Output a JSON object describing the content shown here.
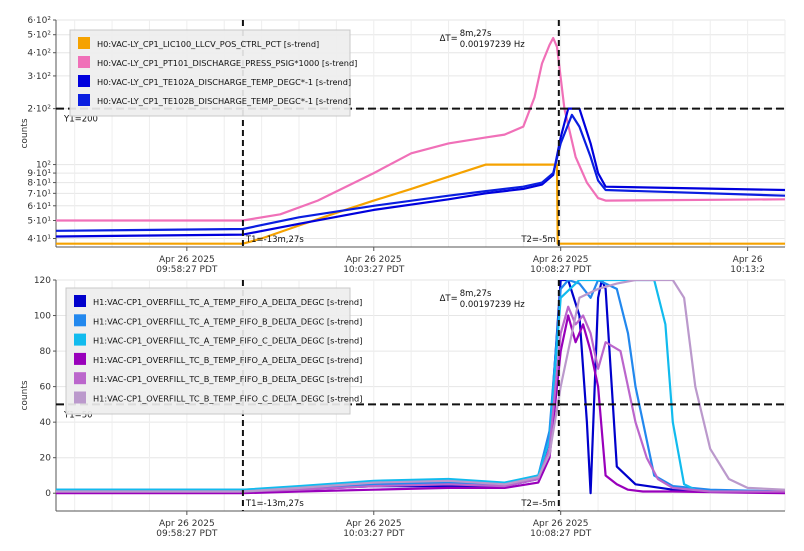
{
  "chart_data": [
    {
      "type": "line",
      "ylabel": "counts",
      "y_scale": "log",
      "ylim": [
        36,
        600
      ],
      "yticks": [
        {
          "v": 40,
          "label": "4·10¹"
        },
        {
          "v": 50,
          "label": "5·10¹"
        },
        {
          "v": 60,
          "label": "6·10¹"
        },
        {
          "v": 70,
          "label": "7·10¹"
        },
        {
          "v": 80,
          "label": "8·10¹"
        },
        {
          "v": 90,
          "label": "9·10¹"
        },
        {
          "v": 100,
          "label": "10²"
        },
        {
          "v": 200,
          "label": "2·10²"
        },
        {
          "v": 300,
          "label": "3·10²"
        },
        {
          "v": 400,
          "label": "4·10²"
        },
        {
          "v": 500,
          "label": "5·10²"
        },
        {
          "v": 600,
          "label": "6·10²"
        }
      ],
      "xlim": [
        -3.5,
        16
      ],
      "xticks": [
        {
          "v": 0,
          "date": "Apr 26 2025",
          "time": "09:58:27 PDT"
        },
        {
          "v": 5,
          "date": "Apr 26 2025",
          "time": "10:03:27 PDT"
        },
        {
          "v": 10,
          "date": "Apr 26 2025",
          "time": "10:08:27 PDT"
        },
        {
          "v": 15,
          "date": "Apr 26",
          "time": "10:13:2"
        }
      ],
      "cursors": {
        "t1_x": 1.5,
        "t1_label": "T1=-13m,27s",
        "t2_x": 9.95,
        "t2_label": "T2=-5m",
        "y1_value": 200,
        "y1_label": "Y1=200",
        "delta_label": "ΔT=",
        "delta_time": "8m,27s",
        "delta_freq": "0.00197239 Hz"
      },
      "legend_position": "top-left",
      "grid": true,
      "series": [
        {
          "name": "H0:VAC-LY_CP1_LIC100_LLCV_POS_CTRL_PCT [s-trend]",
          "color": "#f5a200",
          "x": [
            -3.5,
            1.5,
            2.0,
            3.0,
            4.0,
            5.0,
            6.0,
            7.0,
            8.0,
            9.0,
            9.9,
            9.92,
            10.5,
            11.2,
            11.5,
            16
          ],
          "y": [
            37.5,
            37.5,
            40,
            47,
            55,
            64,
            74,
            86,
            100,
            100,
            100,
            37.5,
            37.5,
            37.5,
            37.5,
            37.5
          ]
        },
        {
          "name": "H0:VAC-LY_CP1_PT101_DISCHARGE_PRESS_PSIG*1000 [s-trend]",
          "color": "#f070b8",
          "x": [
            -3.5,
            1.5,
            2.5,
            3.5,
            5.0,
            6.0,
            7.0,
            8.0,
            8.5,
            9.0,
            9.3,
            9.5,
            9.7,
            9.8,
            9.9,
            10.1,
            10.4,
            10.7,
            11.0,
            11.2,
            16
          ],
          "y": [
            50,
            50,
            54,
            64,
            90,
            115,
            130,
            140,
            145,
            160,
            230,
            350,
            440,
            480,
            430,
            200,
            110,
            80,
            66,
            64,
            65
          ]
        },
        {
          "name": "H0:VAC-LY_CP1_TE102A_DISCHARGE_TEMP_DEGC*-1 [s-trend]",
          "color": "#0000dd",
          "x": [
            -3.5,
            1.5,
            3.0,
            5.0,
            7.0,
            8.0,
            9.0,
            9.5,
            9.8,
            10.0,
            10.2,
            10.5,
            10.8,
            11.0,
            11.2,
            16
          ],
          "y": [
            41,
            42,
            48,
            57,
            65,
            70,
            74,
            78,
            88,
            140,
            200,
            200,
            130,
            90,
            76,
            73
          ]
        },
        {
          "name": "H0:VAC-LY_CP1_TE102B_DISCHARGE_TEMP_DEGC*-1 [s-trend]",
          "color": "#0a1ee0",
          "x": [
            -3.5,
            1.5,
            3.0,
            5.0,
            7.0,
            8.0,
            9.0,
            9.5,
            9.8,
            10.0,
            10.3,
            10.5,
            10.8,
            11.0,
            11.2,
            16
          ],
          "y": [
            44,
            45,
            52,
            60,
            68,
            72,
            76,
            80,
            90,
            130,
            185,
            160,
            110,
            82,
            73,
            68
          ]
        }
      ]
    },
    {
      "type": "line",
      "ylabel": "counts",
      "ylim": [
        -10,
        120
      ],
      "yticks": [
        {
          "v": 0,
          "label": "0"
        },
        {
          "v": 20,
          "label": "20"
        },
        {
          "v": 40,
          "label": "40"
        },
        {
          "v": 60,
          "label": "60"
        },
        {
          "v": 80,
          "label": "80"
        },
        {
          "v": 100,
          "label": "100"
        },
        {
          "v": 120,
          "label": "120"
        }
      ],
      "xlim": [
        -3.5,
        16
      ],
      "xticks": [
        {
          "v": 0,
          "date": "Apr 26 2025",
          "time": "09:58:27 PDT"
        },
        {
          "v": 5,
          "date": "Apr 26 2025",
          "time": "10:03:27 PDT"
        },
        {
          "v": 10,
          "date": "Apr 26 2025",
          "time": "10:08:27 PDT"
        }
      ],
      "cursors": {
        "t1_x": 1.5,
        "t1_label": "T1=-13m,27s",
        "t2_x": 9.95,
        "t2_label": "T2=-5m",
        "y1_value": 50,
        "y1_label": "Y1=50",
        "delta_label": "ΔT=",
        "delta_time": "8m,27s",
        "delta_freq": "0.00197239 Hz"
      },
      "legend_position": "top-left",
      "grid": true,
      "series": [
        {
          "name": "H1:VAC-CP1_OVERFILL_TC_A_TEMP_FIFO_A_DELTA_DEGC [s-trend]",
          "color": "#0000cc",
          "x": [
            -3.5,
            1.5,
            3.0,
            5.0,
            7.0,
            8.5,
            9.4,
            9.7,
            10.0,
            10.2,
            10.5,
            10.7,
            10.8,
            11.0,
            11.1,
            11.2,
            11.5,
            12.0,
            13.0,
            14.0,
            16
          ],
          "y": [
            1,
            1,
            2,
            4,
            4,
            4,
            8,
            30,
            120,
            120,
            100,
            40,
            0,
            110,
            120,
            115,
            15,
            5,
            2,
            1,
            1
          ]
        },
        {
          "name": "H1:VAC-CP1_OVERFILL_TC_A_TEMP_FIFO_B_DELTA_DEGC [s-trend]",
          "color": "#2288ee",
          "x": [
            -3.5,
            1.5,
            3.0,
            5.0,
            7.0,
            8.5,
            9.4,
            9.7,
            10.0,
            10.2,
            10.5,
            10.8,
            11.0,
            11.2,
            11.5,
            11.8,
            12.0,
            12.5,
            13.0,
            14.0,
            16
          ],
          "y": [
            2,
            2,
            3,
            5,
            6,
            5,
            10,
            35,
            115,
            120,
            118,
            110,
            120,
            118,
            115,
            90,
            60,
            10,
            4,
            2,
            1
          ]
        },
        {
          "name": "H1:VAC-CP1_OVERFILL_TC_A_TEMP_FIFO_C_DELTA_DEGC [s-trend]",
          "color": "#11bbee",
          "x": [
            -3.5,
            1.5,
            3.0,
            5.0,
            7.0,
            8.5,
            9.4,
            9.7,
            10.0,
            10.5,
            11.0,
            11.5,
            12.0,
            12.5,
            12.8,
            13.0,
            13.3,
            13.6,
            14.0,
            16
          ],
          "y": [
            2,
            2,
            4,
            7,
            8,
            6,
            10,
            30,
            110,
            120,
            120,
            120,
            120,
            120,
            95,
            40,
            5,
            2,
            1,
            1
          ]
        },
        {
          "name": "H1:VAC-CP1_OVERFILL_TC_B_TEMP_FIFO_A_DELTA_DEGC [s-trend]",
          "color": "#9900bb",
          "x": [
            -3.5,
            1.5,
            3.0,
            5.0,
            7.0,
            8.5,
            9.4,
            9.7,
            10.0,
            10.2,
            10.4,
            10.6,
            10.8,
            11.0,
            11.2,
            11.5,
            11.8,
            12.2,
            13.0,
            16
          ],
          "y": [
            0,
            0,
            1,
            2,
            3,
            3,
            6,
            20,
            80,
            100,
            85,
            95,
            80,
            60,
            10,
            5,
            2,
            1,
            1,
            0
          ]
        },
        {
          "name": "H1:VAC-CP1_OVERFILL_TC_B_TEMP_FIFO_B_DELTA_DEGC [s-trend]",
          "color": "#bb66cc",
          "x": [
            -3.5,
            1.5,
            3.0,
            5.0,
            7.0,
            8.5,
            9.4,
            9.7,
            10.0,
            10.2,
            10.4,
            10.6,
            10.8,
            11.0,
            11.2,
            11.6,
            12.0,
            12.3,
            12.6,
            13.0,
            14.0,
            16
          ],
          "y": [
            1,
            1,
            2,
            4,
            5,
            4,
            8,
            25,
            90,
            105,
            95,
            100,
            90,
            70,
            85,
            80,
            40,
            20,
            8,
            3,
            1,
            1
          ]
        },
        {
          "name": "H1:VAC-CP1_OVERFILL_TC_B_TEMP_FIFO_C_DELTA_DEGC [s-trend]",
          "color": "#bb99cc",
          "x": [
            -3.5,
            1.5,
            3.0,
            5.0,
            7.0,
            8.5,
            9.4,
            9.7,
            10.0,
            10.5,
            11.0,
            11.5,
            12.0,
            12.5,
            13.0,
            13.3,
            13.6,
            14.0,
            14.5,
            15.0,
            16
          ],
          "y": [
            1,
            1,
            3,
            6,
            7,
            5,
            9,
            22,
            60,
            110,
            115,
            118,
            120,
            120,
            120,
            110,
            60,
            25,
            8,
            3,
            2
          ]
        }
      ]
    }
  ]
}
